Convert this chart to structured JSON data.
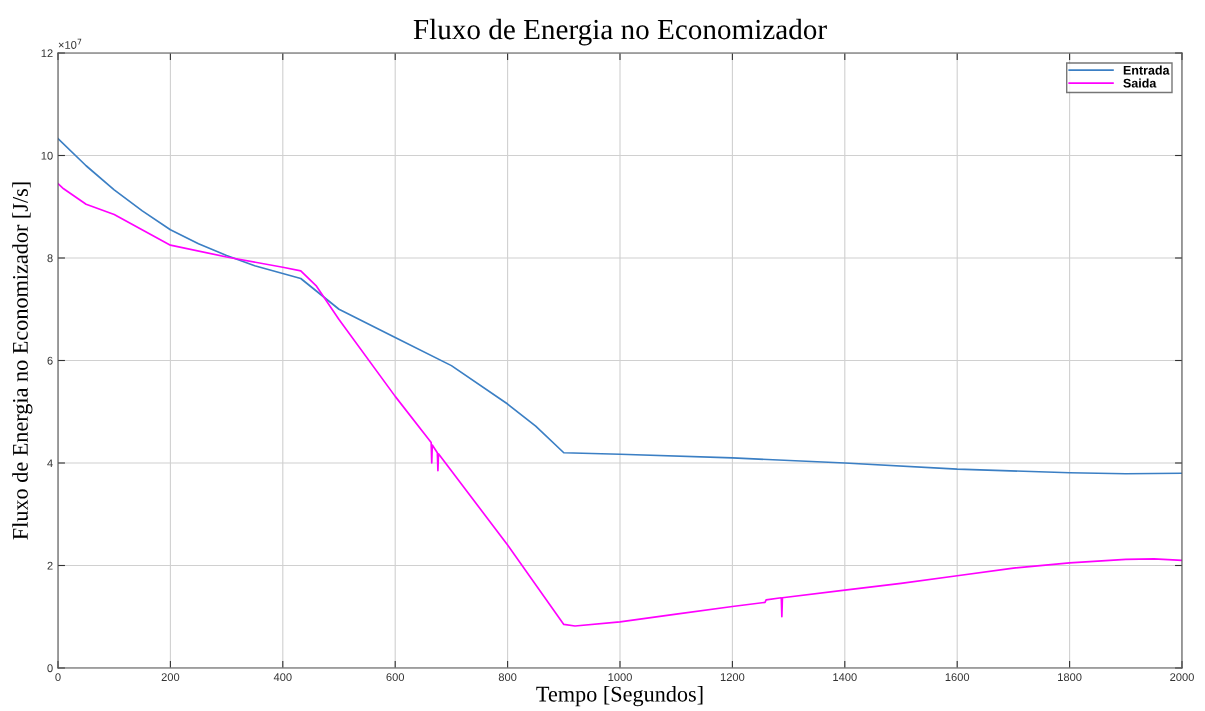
{
  "chart_data": {
    "type": "line",
    "title": "Fluxo de Energia no Economizador",
    "xlabel": "Tempo [Segundos]",
    "ylabel": "Fluxo de Energia no Economizador [J/s]",
    "annotations": [
      "×10$^{7}$"
    ],
    "xlim": [
      0,
      2000
    ],
    "xticks": [
      0,
      200,
      400,
      600,
      800,
      1000,
      1200,
      1400,
      1600,
      1800,
      2000
    ],
    "ylim": [
      0,
      12
    ],
    "yticks": [
      0,
      2,
      4,
      6,
      8,
      10,
      12
    ],
    "grid": true,
    "legend": "top right",
    "line_style": "solid",
    "marker": "none",
    "series": [
      {
        "name": "Entrada",
        "color": "#3b7fc4",
        "x": [
          0,
          50,
          100,
          150,
          200,
          250,
          300,
          350,
          432,
          500,
          600,
          700,
          800,
          850,
          900,
          1000,
          1200,
          1400,
          1600,
          1800,
          1900,
          2000
        ],
        "values": [
          10.33,
          9.8,
          9.33,
          8.92,
          8.55,
          8.28,
          8.05,
          7.85,
          7.6,
          7.0,
          6.45,
          5.9,
          5.15,
          4.72,
          4.2,
          4.17,
          4.1,
          4.0,
          3.88,
          3.81,
          3.79,
          3.8
        ]
      },
      {
        "name": "Saida",
        "color": "#ff00ff",
        "x": [
          0,
          10,
          30,
          50,
          100,
          200,
          300,
          400,
          432,
          460,
          500,
          600,
          664,
          665,
          666,
          675,
          676,
          677,
          800,
          900,
          920,
          1000,
          1100,
          1200,
          1258,
          1260,
          1287,
          1288,
          1289,
          1400,
          1500,
          1600,
          1700,
          1800,
          1900,
          1950,
          2000
        ],
        "values": [
          9.45,
          9.35,
          9.2,
          9.05,
          8.85,
          8.25,
          8.02,
          7.82,
          7.75,
          7.45,
          6.8,
          5.3,
          4.4,
          4.0,
          4.35,
          4.2,
          3.85,
          4.18,
          2.4,
          0.85,
          0.82,
          0.9,
          1.05,
          1.2,
          1.28,
          1.33,
          1.37,
          1.0,
          1.37,
          1.52,
          1.65,
          1.8,
          1.95,
          2.05,
          2.12,
          2.13,
          2.1
        ]
      }
    ]
  }
}
